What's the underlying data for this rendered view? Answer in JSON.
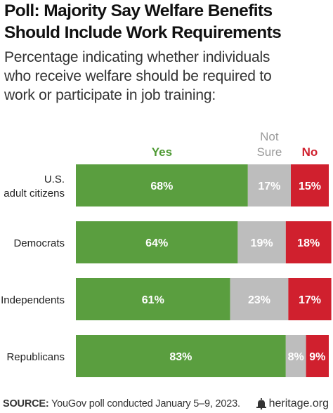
{
  "header": {
    "title_line1": "Poll: Majority Say Welfare Benefits",
    "title_line2": "Should Include Work Requirements",
    "subtitle_line1": "Percentage indicating whether individuals",
    "subtitle_line2": "who receive welfare should be required to",
    "subtitle_line3": "work or participate in job training:"
  },
  "footer": {
    "source_label": "SOURCE:",
    "source_text": " YouGov poll conducted January 5–9, 2023.",
    "brand": "heritage.org",
    "brand_icon": "bell-icon"
  },
  "colors": {
    "yes": "#5a9e3f",
    "not_sure": "#bdbdbd",
    "no": "#d0202e",
    "legend_yes": "#4f9a34",
    "legend_not_sure": "#9a9a9a",
    "legend_no": "#d0202e"
  },
  "chart_data": {
    "type": "bar",
    "orientation": "horizontal",
    "stacked": true,
    "categories": [
      "U.S.\nadult citizens",
      "Democrats",
      "Independents",
      "Republicans"
    ],
    "series": [
      {
        "name": "Yes",
        "values": [
          68,
          64,
          61,
          83
        ]
      },
      {
        "name": "Not\nSure",
        "values": [
          17,
          19,
          23,
          8
        ]
      },
      {
        "name": "No",
        "values": [
          15,
          18,
          17,
          9
        ]
      }
    ],
    "value_suffix": "%",
    "xlim": [
      0,
      100
    ],
    "legend_position": "top",
    "grid": false
  }
}
